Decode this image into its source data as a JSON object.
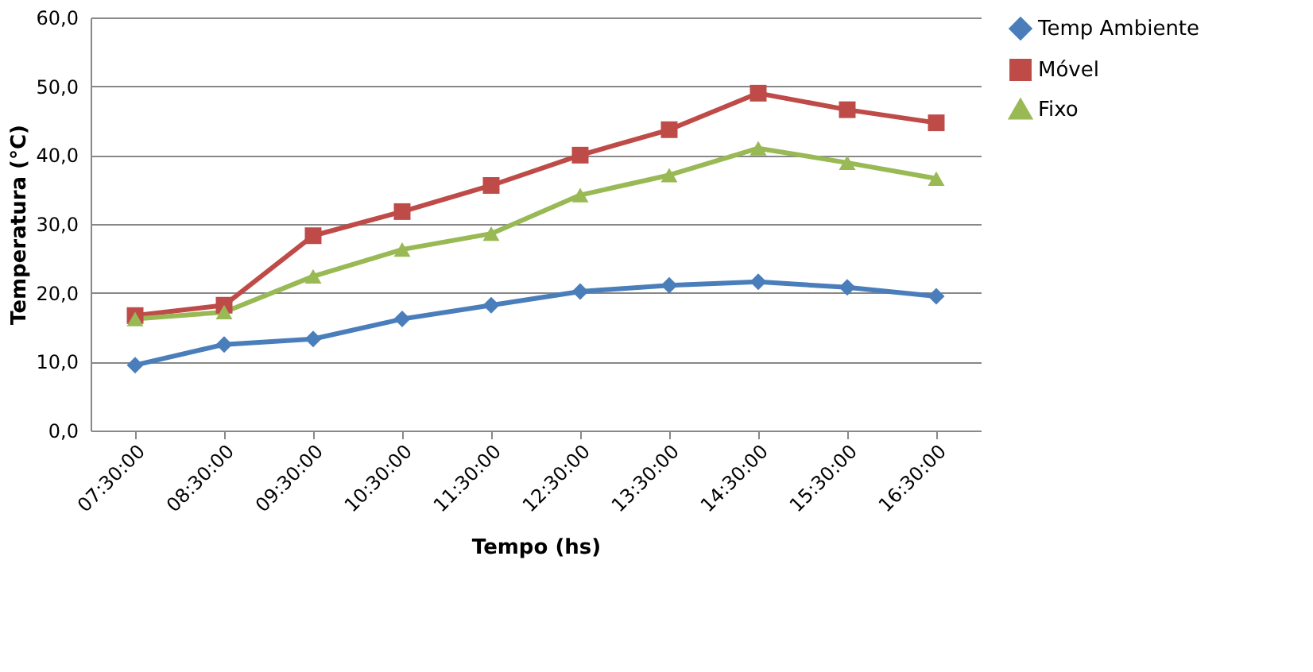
{
  "chart_data": {
    "type": "line",
    "xlabel": "Tempo (hs)",
    "ylabel": "Temperatura (°C)",
    "categories": [
      "07:30:00",
      "08:30:00",
      "09:30:00",
      "10:30:00",
      "11:30:00",
      "12:30:00",
      "13:30:00",
      "14:30:00",
      "15:30:00",
      "16:30:00"
    ],
    "series": [
      {
        "name": "Temp Ambiente",
        "color": "#4a7ebb",
        "marker": "diamond",
        "values": [
          9.5,
          12.5,
          13.3,
          16.2,
          18.2,
          20.2,
          21.1,
          21.6,
          20.8,
          19.5
        ]
      },
      {
        "name": "Móvel",
        "color": "#be4b48",
        "marker": "square",
        "values": [
          16.7,
          18.2,
          28.3,
          31.8,
          35.6,
          40.0,
          43.7,
          49.0,
          46.6,
          44.7
        ]
      },
      {
        "name": "Fixo",
        "color": "#98b954",
        "marker": "triangle",
        "values": [
          16.2,
          17.2,
          22.4,
          26.3,
          28.6,
          34.2,
          37.1,
          41.0,
          38.9,
          36.6
        ]
      }
    ],
    "ylim": [
      0,
      60
    ],
    "yticks": [
      {
        "value": 0,
        "label": "0,0"
      },
      {
        "value": 10,
        "label": "10,0"
      },
      {
        "value": 20,
        "label": "20,0"
      },
      {
        "value": 30,
        "label": "30,0"
      },
      {
        "value": 40,
        "label": "40,0"
      },
      {
        "value": 50,
        "label": "50,0"
      },
      {
        "value": 60,
        "label": "60,0"
      }
    ],
    "grid": "y",
    "legend": "right"
  }
}
